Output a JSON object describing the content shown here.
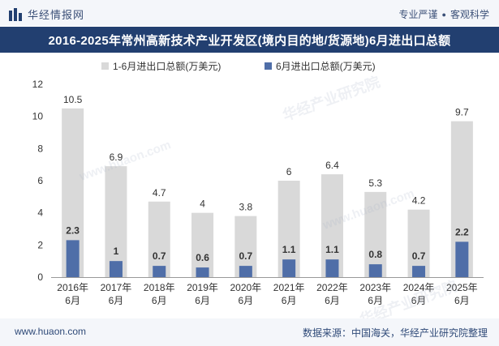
{
  "header": {
    "brand": "华经情报网",
    "slogan_left": "专业严谨",
    "slogan_dot": "●",
    "slogan_right": "客观科学",
    "logo_icon": "bar-logo-icon"
  },
  "title": "2016-2025年常州高新技术产业开发区(境内目的地/货源地)6月进出口总额",
  "watermarks": [
    "华经产业研究院",
    "www.huaon.com"
  ],
  "footer": {
    "url": "www.huaon.com",
    "source": "数据来源：中国海关，华经产业研究院整理"
  },
  "colors": {
    "series1": "#d9d9d9",
    "series2": "#4f6ea8",
    "title_bg": "#223f70"
  },
  "chart_data": {
    "type": "bar",
    "categories": [
      "2016年6月",
      "2017年6月",
      "2018年6月",
      "2019年6月",
      "2020年6月",
      "2021年6月",
      "2022年6月",
      "2023年6月",
      "2024年6月",
      "2025年6月"
    ],
    "series": [
      {
        "name": "1-6月进出口总额(万美元)",
        "values": [
          10.5,
          6.9,
          4.7,
          4,
          3.8,
          6,
          6.4,
          5.3,
          4.2,
          9.7
        ]
      },
      {
        "name": "6月进出口总额(万美元)",
        "values": [
          2.3,
          1,
          0.7,
          0.6,
          0.7,
          1.1,
          1.1,
          0.8,
          0.7,
          2.2
        ]
      }
    ],
    "ylim": [
      0,
      12
    ],
    "yticks": [
      0,
      2,
      4,
      6,
      8,
      10,
      12
    ],
    "legend_position": "top",
    "grid": false
  }
}
